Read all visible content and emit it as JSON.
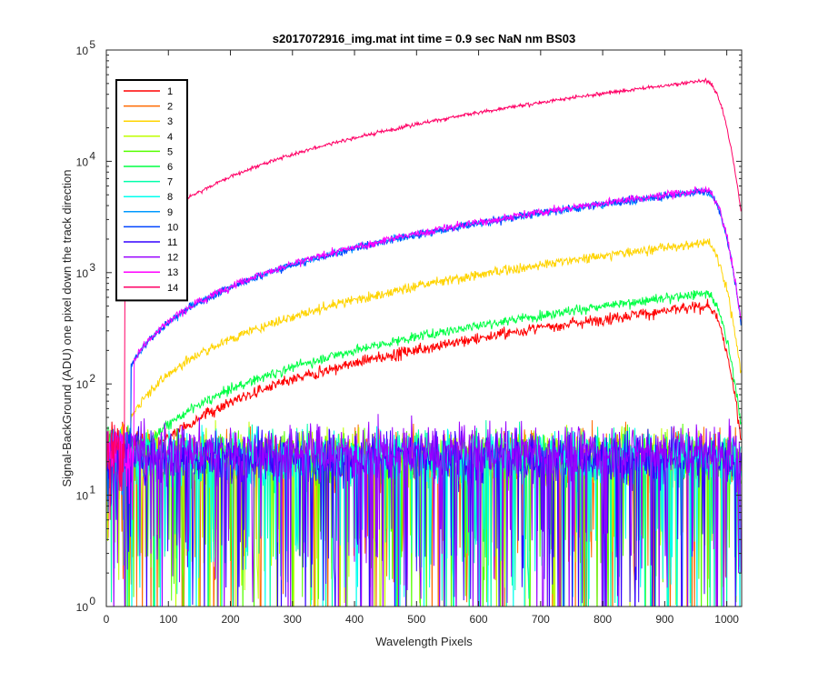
{
  "chart_data": {
    "type": "line",
    "title": "s2017072916_img.mat int time = 0.9 sec  NaN nm BS03",
    "xlabel": "Wavelength Pixels",
    "ylabel": "Signal-BackGround (ADU) one pixel down the track direction",
    "xlim": [
      0,
      1024
    ],
    "ylim": [
      1,
      100000
    ],
    "yscale": "log",
    "x_ticks": [
      0,
      100,
      200,
      300,
      400,
      500,
      600,
      700,
      800,
      900,
      1000
    ],
    "y_ticks": [
      1,
      10,
      100,
      1000,
      10000,
      100000
    ],
    "y_tick_labels": [
      {
        "base": "10",
        "exp": "0"
      },
      {
        "base": "10",
        "exp": "1"
      },
      {
        "base": "10",
        "exp": "2"
      },
      {
        "base": "10",
        "exp": "3"
      },
      {
        "base": "10",
        "exp": "4"
      },
      {
        "base": "10",
        "exp": "5"
      }
    ],
    "legend_position": "top-left",
    "grid": false,
    "series": [
      {
        "name": "1",
        "color": "#ff0000",
        "kind": "signal",
        "peak": 500,
        "start": 35,
        "noise": 0.06
      },
      {
        "name": "2",
        "color": "#ff6a00",
        "kind": "noise",
        "level": 22
      },
      {
        "name": "3",
        "color": "#ffd400",
        "kind": "signal",
        "peak": 1850,
        "start": 40,
        "noise": 0.05
      },
      {
        "name": "4",
        "color": "#bfff00",
        "kind": "noise",
        "level": 22
      },
      {
        "name": "5",
        "color": "#55ff00",
        "kind": "noise",
        "level": 22
      },
      {
        "name": "6",
        "color": "#00ff44",
        "kind": "signal",
        "peak": 650,
        "start": 38,
        "noise": 0.05
      },
      {
        "name": "7",
        "color": "#00ffaa",
        "kind": "noise",
        "level": 22
      },
      {
        "name": "8",
        "color": "#00ffee",
        "kind": "noise",
        "level": 22
      },
      {
        "name": "9",
        "color": "#0099ff",
        "kind": "signal",
        "peak": 5400,
        "start": 40,
        "noise": 0.04
      },
      {
        "name": "10",
        "color": "#0044ff",
        "kind": "signal",
        "peak": 5400,
        "start": 40,
        "noise": 0.04
      },
      {
        "name": "11",
        "color": "#3300ff",
        "kind": "noise",
        "level": 22
      },
      {
        "name": "12",
        "color": "#9900ff",
        "kind": "noise",
        "level": 25
      },
      {
        "name": "13",
        "color": "#ff00ff",
        "kind": "signal",
        "peak": 5500,
        "start": 45,
        "noise": 0.04
      },
      {
        "name": "14",
        "color": "#ff0066",
        "kind": "signal",
        "peak": 53000,
        "start": 30,
        "noise": 0.02
      }
    ]
  }
}
